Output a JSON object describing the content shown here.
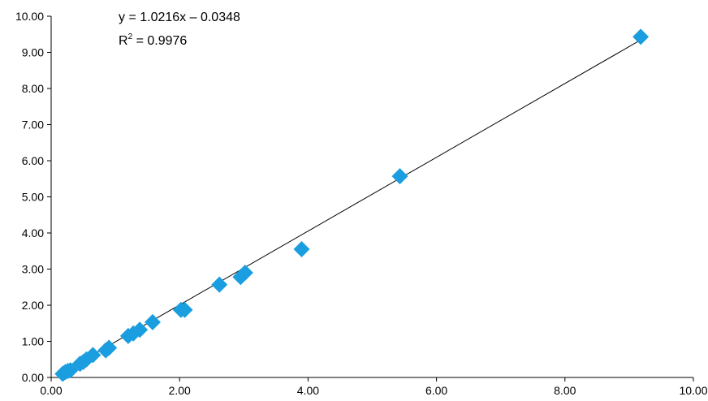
{
  "chart_data": {
    "type": "scatter",
    "title": "",
    "xlabel": "",
    "ylabel": "",
    "xlim": [
      0,
      10
    ],
    "ylim": [
      0,
      10
    ],
    "x_ticks": [
      "0.00",
      "2.00",
      "4.00",
      "6.00",
      "8.00",
      "10.00"
    ],
    "y_ticks": [
      "0.00",
      "1.00",
      "2.00",
      "3.00",
      "4.00",
      "5.00",
      "6.00",
      "7.00",
      "8.00",
      "9.00",
      "10.00"
    ],
    "grid": false,
    "legend": "none",
    "marker": "diamond",
    "marker_color": "#1a9ee0",
    "line_color": "#000000",
    "trendline": {
      "slope": 1.0216,
      "intercept": -0.0348,
      "equation": "y = 1.0216x – 0.0348",
      "r2_prefix": "R",
      "r2_exp": "2",
      "r2_value": " = 0.9976"
    },
    "points": [
      {
        "x": 0.18,
        "y": 0.1
      },
      {
        "x": 0.22,
        "y": 0.15
      },
      {
        "x": 0.26,
        "y": 0.18
      },
      {
        "x": 0.3,
        "y": 0.2
      },
      {
        "x": 0.45,
        "y": 0.38
      },
      {
        "x": 0.5,
        "y": 0.43
      },
      {
        "x": 0.55,
        "y": 0.5
      },
      {
        "x": 0.65,
        "y": 0.62
      },
      {
        "x": 0.85,
        "y": 0.75
      },
      {
        "x": 0.9,
        "y": 0.82
      },
      {
        "x": 1.2,
        "y": 1.15
      },
      {
        "x": 1.28,
        "y": 1.22
      },
      {
        "x": 1.38,
        "y": 1.32
      },
      {
        "x": 1.58,
        "y": 1.53
      },
      {
        "x": 2.02,
        "y": 1.87
      },
      {
        "x": 2.08,
        "y": 1.87
      },
      {
        "x": 2.62,
        "y": 2.57
      },
      {
        "x": 2.95,
        "y": 2.78
      },
      {
        "x": 3.02,
        "y": 2.9
      },
      {
        "x": 3.9,
        "y": 3.55
      },
      {
        "x": 5.43,
        "y": 5.57
      },
      {
        "x": 9.18,
        "y": 9.43
      }
    ]
  }
}
